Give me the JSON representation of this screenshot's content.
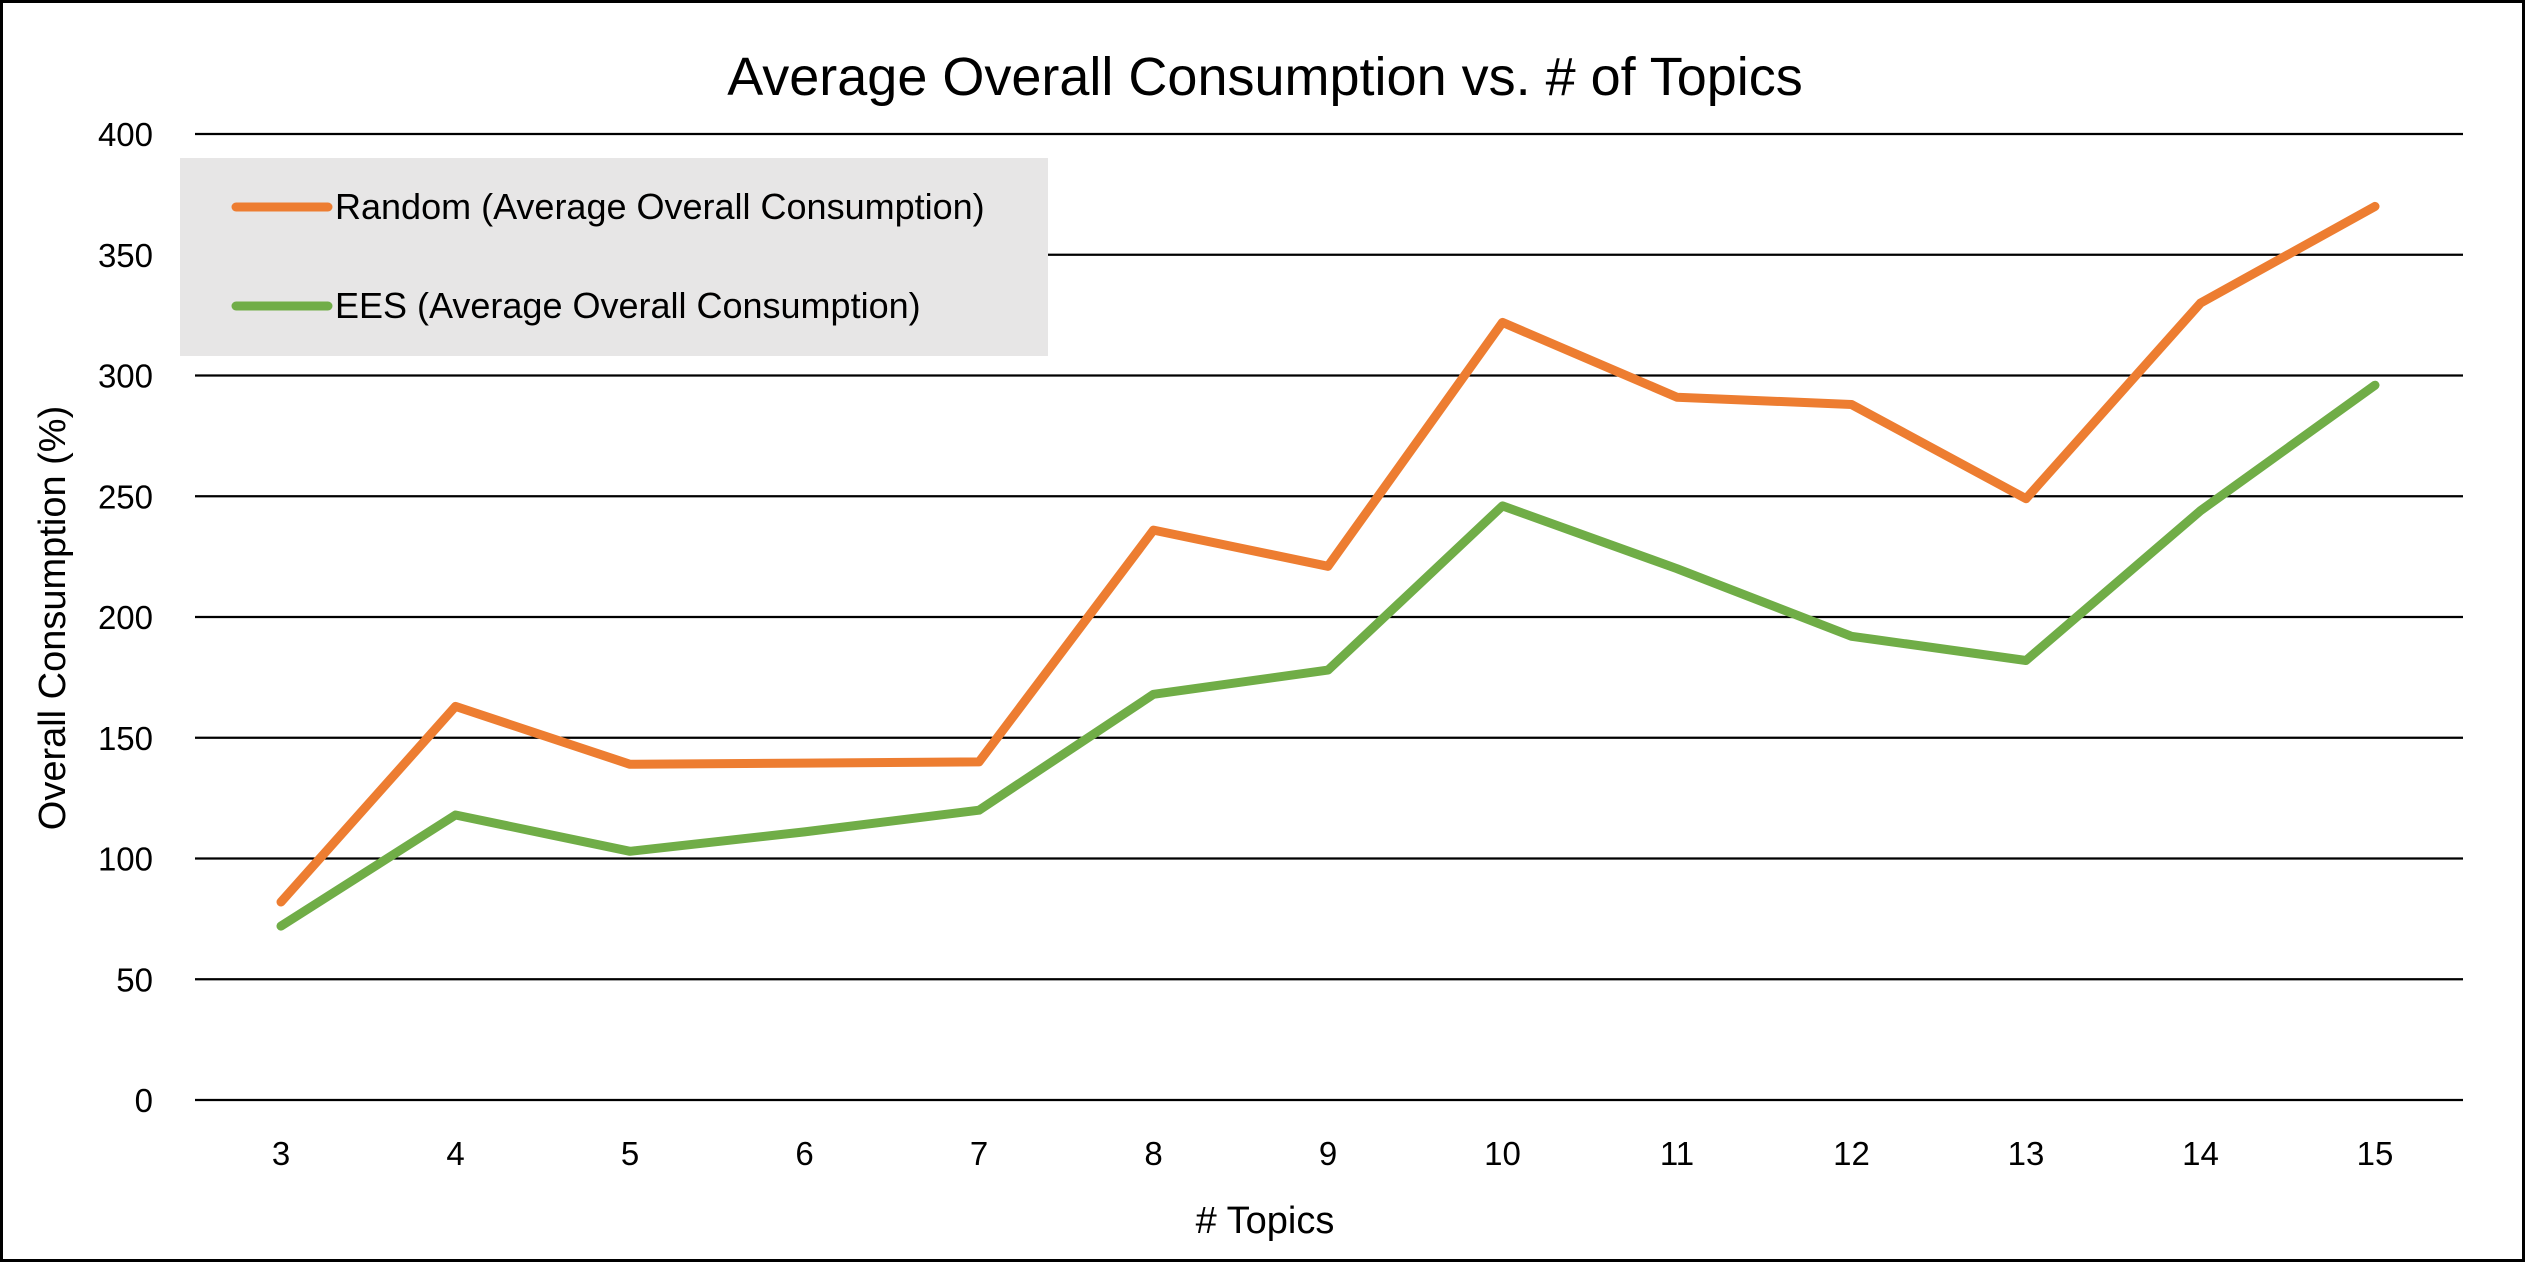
{
  "chart_data": {
    "type": "line",
    "title": "Average Overall Consumption vs. # of Topics",
    "xlabel": "# Topics",
    "ylabel": "Overall Consumption (%)",
    "categories": [
      "3",
      "4",
      "5",
      "6",
      "7",
      "8",
      "9",
      "10",
      "11",
      "12",
      "13",
      "14",
      "15"
    ],
    "y_ticks": [
      "0",
      "50",
      "100",
      "150",
      "200",
      "250",
      "300",
      "350",
      "400"
    ],
    "ylim": [
      0,
      400
    ],
    "grid": true,
    "legend_position": "top-left",
    "series": [
      {
        "name": "Random (Average Overall Consumption)",
        "color": "#ED7D31",
        "values": [
          82,
          163,
          139,
          139.5,
          140,
          236,
          221,
          322,
          291,
          288,
          249,
          330,
          370
        ]
      },
      {
        "name": "EES (Average Overall Consumption)",
        "color": "#70AD47",
        "values": [
          72,
          118,
          103,
          111,
          120,
          168,
          178,
          246,
          220,
          192,
          182,
          244,
          296
        ]
      }
    ]
  }
}
